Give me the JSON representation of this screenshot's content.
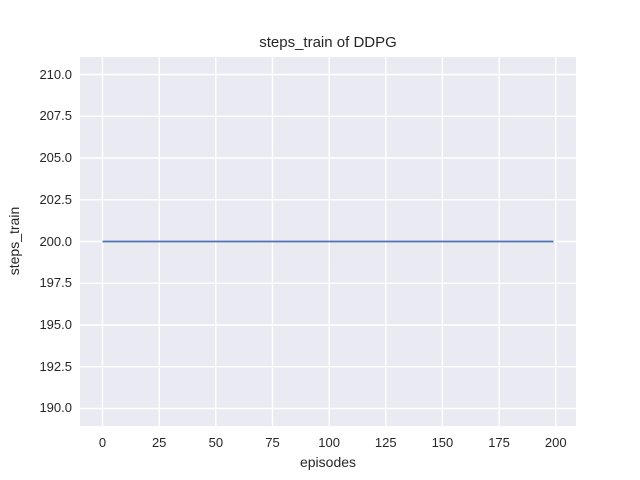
{
  "figure": {
    "title": "steps_train of DDPG",
    "xlabel": "episodes",
    "ylabel": "steps_train",
    "colors": {
      "figure_bg": "#ffffff",
      "plot_bg": "#eaeaf2",
      "grid": "#ffffff",
      "line": "#4c72b0",
      "text": "#262626"
    }
  },
  "chart_data": {
    "type": "line",
    "title": "steps_train of DDPG",
    "xlabel": "episodes",
    "ylabel": "steps_train",
    "grid": true,
    "legend": false,
    "xlim": [
      -9.95,
      208.95
    ],
    "ylim": [
      188.95,
      211.05
    ],
    "x_ticks": [
      0,
      25,
      50,
      75,
      100,
      125,
      150,
      175,
      200
    ],
    "x_tick_labels": [
      "0",
      "25",
      "50",
      "75",
      "100",
      "125",
      "150",
      "175",
      "200"
    ],
    "y_ticks": [
      190.0,
      192.5,
      195.0,
      197.5,
      200.0,
      202.5,
      205.0,
      207.5,
      210.0
    ],
    "y_tick_labels": [
      "190.0",
      "192.5",
      "195.0",
      "197.5",
      "200.0",
      "202.5",
      "205.0",
      "207.5",
      "210.0"
    ],
    "series": [
      {
        "name": "steps_train",
        "color": "#4c72b0",
        "description": "constant value 200 for every episode from 0 to 199",
        "x": [
          0,
          199
        ],
        "y": [
          200,
          200
        ]
      }
    ]
  }
}
